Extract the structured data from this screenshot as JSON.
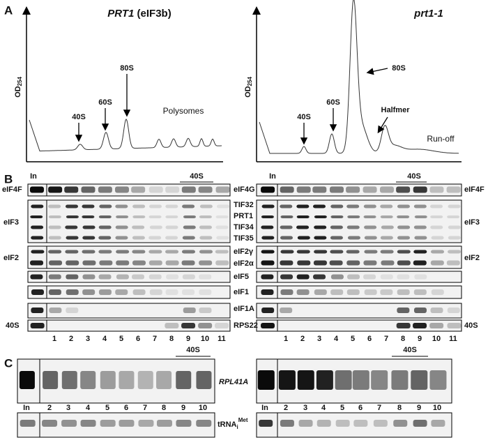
{
  "panel_a": {
    "label": "A",
    "left": {
      "title": "PRT1",
      "title_rest": "(eIF3b)",
      "y_label": "OD",
      "y_label_sub": "254",
      "peak_labels": [
        "40S",
        "60S",
        "80S"
      ],
      "note": "Polysomes"
    },
    "right": {
      "title": "prt1-1",
      "y_label": "OD",
      "y_label_sub": "254",
      "peak_labels": [
        "40S",
        "60S",
        "80S"
      ],
      "halfmer": "Halfmer",
      "note": "Run-off"
    }
  },
  "panel_b": {
    "label": "B",
    "left": {
      "input": "In",
      "fraction": "40S",
      "lanes": [
        "1",
        "2",
        "3",
        "4",
        "5",
        "6",
        "7",
        "8",
        "9",
        "10",
        "11"
      ],
      "groups": [
        "eIF4F",
        "eIF3",
        "eIF2",
        "40S"
      ]
    },
    "proteins": [
      "eIF4G",
      "TIF32",
      "PRT1",
      "TIF34",
      "TIF35",
      "eIF2γ",
      "eIF2α",
      "eIF5",
      "eIF1",
      "eIF1A",
      "RPS22"
    ],
    "right": {
      "input": "In",
      "fraction": "40S",
      "lanes": [
        "1",
        "2",
        "3",
        "4",
        "5",
        "6",
        "7",
        "8",
        "9",
        "10",
        "11"
      ],
      "groups": [
        "eIF4F",
        "eIF3",
        "eIF2",
        "40S"
      ]
    }
  },
  "panel_c": {
    "label": "C",
    "mrna": "RPL41A",
    "trna": "tRNA",
    "trna_sub": "i",
    "trna_sup": "Met",
    "left": {
      "fraction": "40S",
      "lanes": [
        "In",
        "2",
        "3",
        "4",
        "5",
        "6",
        "7",
        "8",
        "9",
        "10"
      ]
    },
    "right": {
      "fraction": "40S",
      "lanes": [
        "In",
        "2",
        "3",
        "4",
        "5",
        "6",
        "7",
        "8",
        "9",
        "10"
      ]
    }
  }
}
